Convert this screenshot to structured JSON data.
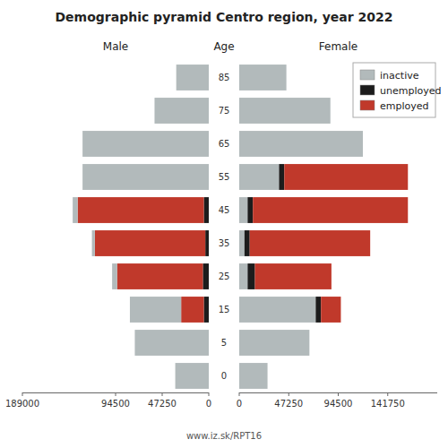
{
  "chart_data": [
    {
      "type": "bar",
      "orientation": "horizontal",
      "stacked": true,
      "title": "Demographic pyramid Centro region, year 2022",
      "xlabel": "Male",
      "ylabel": "Age",
      "annotations": [
        "www.iz.sk/RPT16"
      ],
      "categories": [
        "0",
        "5",
        "15",
        "25",
        "35",
        "45",
        "55",
        "65",
        "75",
        "85"
      ],
      "series": [
        {
          "color": "#1c1c1c",
          "values": [
            0,
            0,
            5000,
            6000,
            3500,
            5000,
            0,
            0,
            0,
            0
          ]
        },
        {
          "color": "#c0392b",
          "values": [
            0,
            0,
            23000,
            87000,
            112000,
            128000,
            0,
            0,
            0,
            0
          ]
        },
        {
          "color": "#b2babb",
          "values": [
            34000,
            75000,
            52000,
            5000,
            3000,
            5000,
            128000,
            128000,
            55000,
            33000
          ]
        }
      ],
      "xlim": [
        189000,
        0
      ],
      "xticks": [
        189000,
        94500,
        47250,
        0
      ]
    },
    {
      "type": "bar",
      "orientation": "horizontal",
      "stacked": true,
      "xlabel": "Female",
      "categories": [
        "0",
        "5",
        "15",
        "25",
        "35",
        "45",
        "55",
        "65",
        "75",
        "85"
      ],
      "series": [
        {
          "name": "inactive",
          "color": "#b2babb",
          "values": [
            27000,
            67000,
            73000,
            8000,
            5000,
            8000,
            38000,
            118000,
            87000,
            45000
          ]
        },
        {
          "name": "unemployed",
          "color": "#1c1c1c",
          "values": [
            0,
            0,
            5000,
            7000,
            5000,
            5000,
            5000,
            0,
            0,
            0
          ]
        },
        {
          "name": "employed",
          "color": "#c0392b",
          "values": [
            0,
            0,
            19000,
            73000,
            115000,
            148000,
            118000,
            0,
            0,
            0
          ]
        }
      ],
      "xlim": [
        0,
        189000
      ],
      "xticks": [
        0,
        47250,
        94500,
        141750
      ],
      "legend": "upper right"
    }
  ]
}
